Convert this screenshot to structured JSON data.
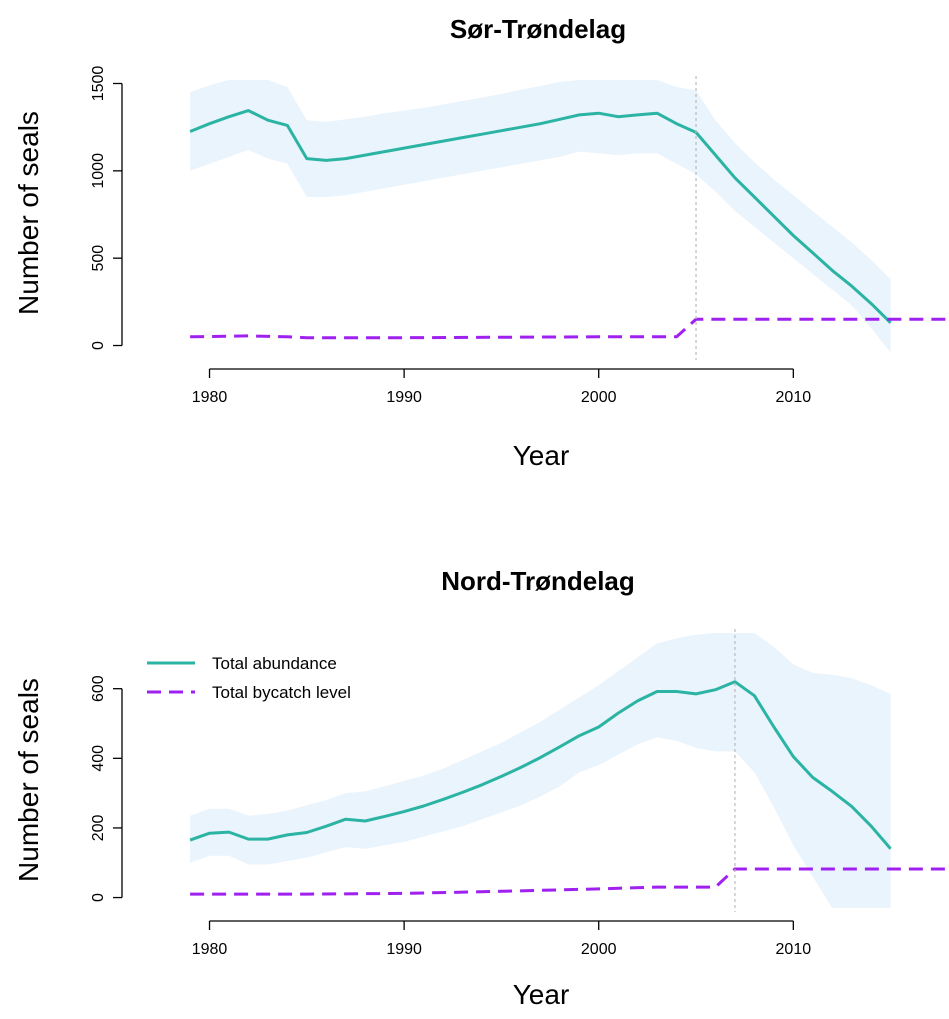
{
  "colors": {
    "abundance": "#2bb3a3",
    "bycatch": "#a020f0",
    "band": "#eaf4fd",
    "vline": "#bbbbbb",
    "axis": "#000000"
  },
  "chart_data": [
    {
      "type": "line",
      "title": "Sør-Trøndelag",
      "xlabel": "Year",
      "ylabel": "Number of seals",
      "xlim": [
        1975.4,
        2018
      ],
      "ylim": [
        -60,
        1520
      ],
      "xticks": [
        1980,
        1990,
        2000,
        2010
      ],
      "xtick_labels": [
        "1980",
        "1990",
        "2000",
        "2010"
      ],
      "yticks": [
        0,
        500,
        1000,
        1500
      ],
      "ytick_labels": [
        "0",
        "500",
        "1000",
        "1500"
      ],
      "grid": false,
      "legend": null,
      "vline": 2005,
      "band": {
        "x": [
          1979,
          1980,
          1981,
          1982,
          1983,
          1984,
          1985,
          1986,
          1987,
          1988,
          1989,
          1990,
          1991,
          1992,
          1993,
          1994,
          1995,
          1996,
          1997,
          1998,
          1999,
          2000,
          2001,
          2002,
          2003,
          2004,
          2005,
          2006,
          2007,
          2008,
          2009,
          2010,
          2011,
          2012,
          2013,
          2014,
          2015
        ],
        "lower": [
          1000,
          1040,
          1080,
          1120,
          1070,
          1040,
          850,
          850,
          860,
          880,
          900,
          920,
          940,
          960,
          980,
          1000,
          1020,
          1040,
          1060,
          1080,
          1110,
          1100,
          1090,
          1100,
          1100,
          1040,
          980,
          880,
          770,
          680,
          590,
          500,
          410,
          320,
          230,
          100,
          -40
        ],
        "upper": [
          1450,
          1490,
          1520,
          1520,
          1520,
          1480,
          1290,
          1280,
          1295,
          1310,
          1330,
          1345,
          1360,
          1380,
          1400,
          1420,
          1440,
          1465,
          1485,
          1510,
          1520,
          1520,
          1520,
          1520,
          1520,
          1480,
          1460,
          1290,
          1160,
          1050,
          950,
          860,
          770,
          680,
          590,
          490,
          380
        ]
      },
      "series": [
        {
          "name": "Total abundance",
          "style": "solid",
          "x": [
            1979,
            1980,
            1981,
            1982,
            1983,
            1984,
            1985,
            1986,
            1987,
            1988,
            1989,
            1990,
            1991,
            1992,
            1993,
            1994,
            1995,
            1996,
            1997,
            1998,
            1999,
            2000,
            2001,
            2002,
            2003,
            2004,
            2005,
            2006,
            2007,
            2008,
            2009,
            2010,
            2011,
            2012,
            2013,
            2014,
            2015
          ],
          "values": [
            1225,
            1270,
            1310,
            1345,
            1290,
            1260,
            1070,
            1060,
            1070,
            1090,
            1110,
            1130,
            1150,
            1170,
            1190,
            1210,
            1230,
            1250,
            1270,
            1295,
            1320,
            1330,
            1310,
            1320,
            1330,
            1270,
            1220,
            1090,
            960,
            850,
            740,
            630,
            530,
            430,
            340,
            240,
            130
          ]
        },
        {
          "name": "Total bycatch level",
          "style": "dashed",
          "x": [
            1979,
            1982,
            1984,
            1985,
            1990,
            2000,
            2004,
            2005,
            2018
          ],
          "values": [
            50,
            55,
            50,
            45,
            45,
            50,
            50,
            150,
            150
          ]
        }
      ]
    },
    {
      "type": "line",
      "title": "Nord-Trøndelag",
      "xlabel": "Year",
      "ylabel": "Number of seals",
      "xlim": [
        1975.4,
        2018
      ],
      "ylim": [
        -30,
        760
      ],
      "xticks": [
        1980,
        1990,
        2000,
        2010
      ],
      "xtick_labels": [
        "1980",
        "1990",
        "2000",
        "2010"
      ],
      "yticks": [
        0,
        200,
        400,
        600
      ],
      "ytick_labels": [
        "0",
        "200",
        "400",
        "600"
      ],
      "grid": false,
      "legend": {
        "position": "top-left",
        "entries": [
          {
            "label": "Total abundance",
            "style": "solid",
            "series": 0
          },
          {
            "label": "Total bycatch level",
            "style": "dashed",
            "series": 1
          }
        ]
      },
      "vline": 2007,
      "band": {
        "x": [
          1979,
          1980,
          1981,
          1982,
          1983,
          1984,
          1985,
          1986,
          1987,
          1988,
          1989,
          1990,
          1991,
          1992,
          1993,
          1994,
          1995,
          1996,
          1997,
          1998,
          1999,
          2000,
          2001,
          2002,
          2003,
          2004,
          2005,
          2006,
          2007,
          2008,
          2009,
          2010,
          2011,
          2012,
          2013,
          2014,
          2015
        ],
        "lower": [
          100,
          120,
          120,
          95,
          95,
          105,
          115,
          130,
          145,
          140,
          150,
          160,
          175,
          190,
          205,
          225,
          245,
          265,
          290,
          320,
          360,
          380,
          410,
          440,
          460,
          450,
          430,
          420,
          420,
          360,
          260,
          150,
          60,
          -30,
          -30,
          -30,
          -30
        ],
        "upper": [
          235,
          255,
          255,
          235,
          240,
          250,
          265,
          280,
          300,
          305,
          320,
          335,
          350,
          370,
          395,
          420,
          445,
          475,
          505,
          540,
          575,
          610,
          650,
          690,
          730,
          745,
          755,
          760,
          760,
          760,
          720,
          670,
          645,
          640,
          630,
          610,
          585
        ]
      },
      "series": [
        {
          "name": "Total abundance",
          "style": "solid",
          "x": [
            1979,
            1980,
            1981,
            1982,
            1983,
            1984,
            1985,
            1986,
            1987,
            1988,
            1989,
            1990,
            1991,
            1992,
            1993,
            1994,
            1995,
            1996,
            1997,
            1998,
            1999,
            2000,
            2001,
            2002,
            2003,
            2004,
            2005,
            2006,
            2007,
            2008,
            2009,
            2010,
            2011,
            2012,
            2013,
            2014,
            2015
          ],
          "values": [
            165,
            185,
            188,
            168,
            168,
            180,
            187,
            205,
            225,
            220,
            233,
            247,
            263,
            282,
            302,
            324,
            348,
            374,
            402,
            433,
            465,
            490,
            530,
            565,
            592,
            592,
            585,
            597,
            620,
            580,
            490,
            405,
            345,
            305,
            262,
            205,
            140
          ]
        },
        {
          "name": "Total bycatch level",
          "style": "dashed",
          "x": [
            1979,
            1985,
            1990,
            1995,
            2000,
            2003,
            2006,
            2007,
            2018
          ],
          "values": [
            10,
            10,
            12,
            18,
            25,
            30,
            30,
            82,
            82
          ]
        }
      ]
    }
  ]
}
